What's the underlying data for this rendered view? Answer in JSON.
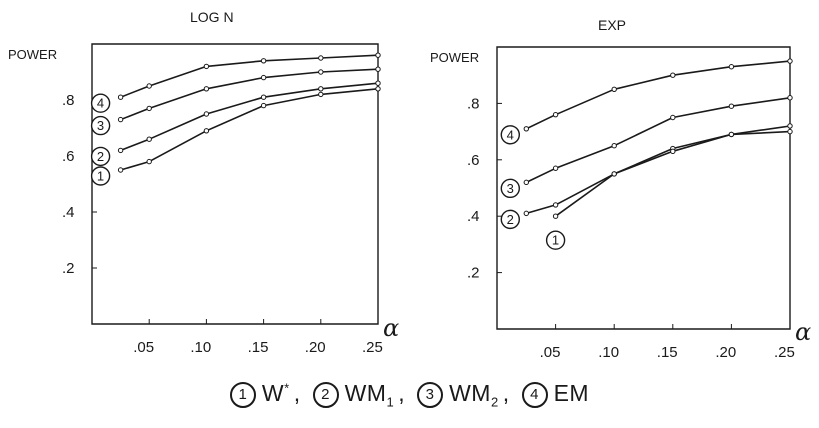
{
  "chart_data": [
    {
      "type": "line",
      "title": "LOG N",
      "ylabel": "POWER",
      "xlabel": "α",
      "xlim": [
        0,
        0.25
      ],
      "ylim": [
        0,
        1.0
      ],
      "x_ticks": [
        ".05",
        ".10",
        ".15",
        ".20",
        ".25"
      ],
      "x_tick_values": [
        0.05,
        0.1,
        0.15,
        0.2,
        0.25
      ],
      "y_ticks": [
        ".2",
        ".4",
        ".6",
        ".8"
      ],
      "y_tick_values": [
        0.2,
        0.4,
        0.6,
        0.8
      ],
      "series": [
        {
          "name": "1",
          "x": [
            0.025,
            0.05,
            0.1,
            0.15,
            0.2,
            0.25
          ],
          "y": [
            0.55,
            0.58,
            0.69,
            0.78,
            0.82,
            0.84
          ]
        },
        {
          "name": "2",
          "x": [
            0.025,
            0.05,
            0.1,
            0.15,
            0.2,
            0.25
          ],
          "y": [
            0.62,
            0.66,
            0.75,
            0.81,
            0.84,
            0.86
          ]
        },
        {
          "name": "3",
          "x": [
            0.025,
            0.05,
            0.1,
            0.15,
            0.2,
            0.25
          ],
          "y": [
            0.73,
            0.77,
            0.84,
            0.88,
            0.9,
            0.91
          ]
        },
        {
          "name": "4",
          "x": [
            0.025,
            0.05,
            0.1,
            0.15,
            0.2,
            0.25
          ],
          "y": [
            0.81,
            0.85,
            0.92,
            0.94,
            0.95,
            0.96
          ]
        }
      ]
    },
    {
      "type": "line",
      "title": "EXP",
      "ylabel": "POWER",
      "xlabel": "α",
      "xlim": [
        0,
        0.25
      ],
      "ylim": [
        0,
        1.0
      ],
      "x_ticks": [
        ".05",
        ".10",
        ".15",
        ".20",
        ".25"
      ],
      "x_tick_values": [
        0.05,
        0.1,
        0.15,
        0.2,
        0.25
      ],
      "y_ticks": [
        ".2",
        ".4",
        ".6",
        ".8"
      ],
      "y_tick_values": [
        0.2,
        0.4,
        0.6,
        0.8
      ],
      "series": [
        {
          "name": "1",
          "x": [
            0.05,
            0.1,
            0.15,
            0.2,
            0.25
          ],
          "y": [
            0.4,
            0.55,
            0.64,
            0.69,
            0.7
          ]
        },
        {
          "name": "2",
          "x": [
            0.025,
            0.05,
            0.1,
            0.15,
            0.2,
            0.25
          ],
          "y": [
            0.41,
            0.44,
            0.55,
            0.63,
            0.69,
            0.72
          ]
        },
        {
          "name": "3",
          "x": [
            0.025,
            0.05,
            0.1,
            0.15,
            0.2,
            0.25
          ],
          "y": [
            0.52,
            0.57,
            0.65,
            0.75,
            0.79,
            0.82
          ]
        },
        {
          "name": "4",
          "x": [
            0.025,
            0.05,
            0.1,
            0.15,
            0.2,
            0.25
          ],
          "y": [
            0.71,
            0.76,
            0.85,
            0.9,
            0.93,
            0.95
          ]
        }
      ]
    }
  ],
  "legend": {
    "items": [
      {
        "num": "1",
        "label": "W",
        "sup": "*",
        "sub": ""
      },
      {
        "num": "2",
        "label": "WM",
        "sup": "",
        "sub": "1"
      },
      {
        "num": "3",
        "label": "WM",
        "sup": "",
        "sub": "2"
      },
      {
        "num": "4",
        "label": "EM",
        "sup": "",
        "sub": ""
      }
    ],
    "separator": ","
  },
  "colors": {
    "ink": "#1a1a1a",
    "background": "#ffffff"
  }
}
